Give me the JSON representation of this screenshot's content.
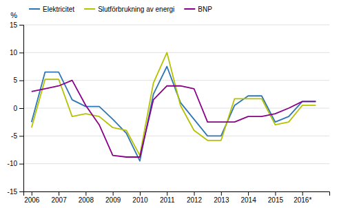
{
  "chart_data": {
    "type": "line",
    "x": [
      2006.0,
      2006.5,
      2007.0,
      2007.5,
      2008.0,
      2008.5,
      2009.0,
      2009.5,
      2010.0,
      2010.5,
      2011.0,
      2011.5,
      2012.0,
      2012.5,
      2013.0,
      2013.5,
      2014.0,
      2014.5,
      2015.0,
      2015.5,
      2016.0,
      2016.5
    ],
    "series": [
      {
        "name": "Elektricitet",
        "color": "#2e75b6",
        "values": [
          -2.5,
          6.5,
          6.5,
          1.5,
          0.3,
          0.3,
          -2.0,
          -4.5,
          -9.5,
          2.5,
          7.5,
          1.0,
          -2.0,
          -5.0,
          -5.0,
          0.5,
          2.2,
          2.2,
          -2.5,
          -1.5,
          1.2,
          1.2
        ]
      },
      {
        "name": "Slutförbrukning av energi",
        "color": "#b5c200",
        "values": [
          -3.5,
          5.2,
          5.2,
          -1.5,
          -1.0,
          -1.5,
          -3.5,
          -4.0,
          -8.5,
          4.5,
          10.0,
          0.5,
          -4.0,
          -5.8,
          -5.8,
          1.7,
          1.7,
          1.7,
          -3.0,
          -2.5,
          0.5,
          0.5
        ]
      },
      {
        "name": "BNP",
        "color": "#8B008B",
        "values": [
          3.0,
          3.5,
          4.0,
          5.0,
          0.5,
          -3.0,
          -8.5,
          -8.8,
          -8.8,
          1.5,
          4.0,
          4.0,
          3.5,
          -2.5,
          -2.5,
          -2.5,
          -1.5,
          -1.5,
          -1.0,
          0.0,
          1.2,
          1.2
        ]
      }
    ],
    "y_label": "%",
    "xlim": [
      2005.7,
      2017.0
    ],
    "xticks": [
      2006,
      2007,
      2008,
      2009,
      2010,
      2011,
      2012,
      2013,
      2014,
      2015,
      {
        "value": 2016,
        "label": "2016*"
      }
    ],
    "ylim": [
      -15,
      15
    ],
    "yticks": [
      -15,
      -10,
      -5,
      0,
      5,
      10,
      15
    ],
    "grid": true,
    "legend": "upper left"
  }
}
